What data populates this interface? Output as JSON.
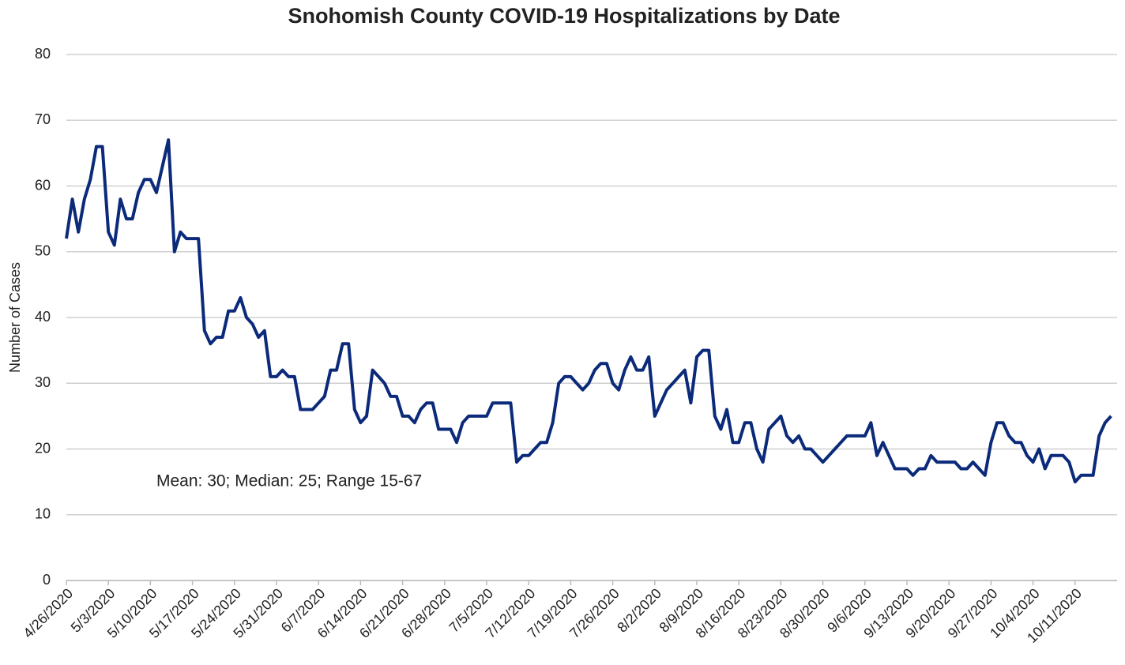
{
  "chart_data": {
    "type": "line",
    "title": "Snohomish County COVID-19 Hospitalizations by Date",
    "y_label": "Number of Cases",
    "annotation": "Mean: 30; Median: 25; Range 15-67",
    "categories": [
      "4/26/2020",
      null,
      null,
      null,
      null,
      null,
      null,
      "5/3/2020",
      null,
      null,
      null,
      null,
      null,
      null,
      "5/10/2020",
      null,
      null,
      null,
      null,
      null,
      null,
      "5/17/2020",
      null,
      null,
      null,
      null,
      null,
      null,
      "5/24/2020",
      null,
      null,
      null,
      null,
      null,
      null,
      "5/31/2020",
      null,
      null,
      null,
      null,
      null,
      null,
      "6/7/2020",
      null,
      null,
      null,
      null,
      null,
      null,
      "6/14/2020",
      null,
      null,
      null,
      null,
      null,
      null,
      "6/21/2020",
      null,
      null,
      null,
      null,
      null,
      null,
      "6/28/2020",
      null,
      null,
      null,
      null,
      null,
      null,
      "7/5/2020",
      null,
      null,
      null,
      null,
      null,
      null,
      "7/12/2020",
      null,
      null,
      null,
      null,
      null,
      null,
      "7/19/2020",
      null,
      null,
      null,
      null,
      null,
      null,
      "7/26/2020",
      null,
      null,
      null,
      null,
      null,
      null,
      "8/2/2020",
      null,
      null,
      null,
      null,
      null,
      null,
      "8/9/2020",
      null,
      null,
      null,
      null,
      null,
      null,
      "8/16/2020",
      null,
      null,
      null,
      null,
      null,
      null,
      "8/23/2020",
      null,
      null,
      null,
      null,
      null,
      null,
      "8/30/2020",
      null,
      null,
      null,
      null,
      null,
      null,
      "9/6/2020",
      null,
      null,
      null,
      null,
      null,
      null,
      "9/13/2020",
      null,
      null,
      null,
      null,
      null,
      null,
      "9/20/2020",
      null,
      null,
      null,
      null,
      null,
      null,
      "9/27/2020",
      null,
      null,
      null,
      null,
      null,
      null,
      "10/4/2020",
      null,
      null,
      null,
      null,
      null,
      null,
      "10/11/2020",
      null,
      null,
      null,
      null,
      null,
      null
    ],
    "series": [
      {
        "name": "Hospitalizations",
        "color": "#0b2a7a",
        "values": [
          52,
          58,
          53,
          58,
          61,
          66,
          66,
          53,
          51,
          58,
          55,
          55,
          59,
          61,
          61,
          59,
          63,
          67,
          50,
          53,
          52,
          52,
          52,
          38,
          36,
          37,
          37,
          41,
          41,
          43,
          40,
          39,
          37,
          38,
          31,
          31,
          32,
          31,
          31,
          26,
          26,
          26,
          27,
          28,
          32,
          32,
          36,
          36,
          26,
          24,
          25,
          32,
          31,
          30,
          28,
          28,
          25,
          25,
          24,
          26,
          27,
          27,
          23,
          23,
          23,
          21,
          24,
          25,
          25,
          25,
          25,
          27,
          27,
          27,
          27,
          18,
          19,
          19,
          20,
          21,
          21,
          24,
          30,
          31,
          31,
          30,
          29,
          30,
          32,
          33,
          33,
          30,
          29,
          32,
          34,
          32,
          32,
          34,
          25,
          27,
          29,
          30,
          31,
          32,
          27,
          34,
          35,
          35,
          25,
          23,
          26,
          21,
          21,
          24,
          24,
          20,
          18,
          23,
          24,
          25,
          22,
          21,
          22,
          20,
          20,
          19,
          18,
          19,
          20,
          21,
          22,
          22,
          22,
          22,
          24,
          19,
          21,
          19,
          17,
          17,
          17,
          16,
          17,
          17,
          19,
          18,
          18,
          18,
          18,
          17,
          17,
          18,
          17,
          16,
          21,
          24,
          24,
          22,
          21,
          21,
          19,
          18,
          20,
          17,
          19,
          19,
          19,
          18,
          15,
          16,
          16,
          16,
          22,
          24,
          25
        ]
      }
    ],
    "ylim": [
      0,
      80
    ],
    "yticks": [
      0,
      10,
      20,
      30,
      40,
      50,
      60,
      70,
      80
    ],
    "grid": true,
    "legend": false
  }
}
